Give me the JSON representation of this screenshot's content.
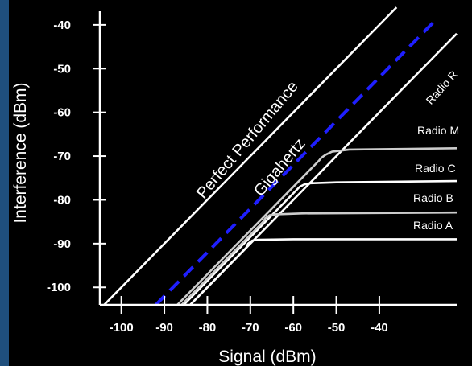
{
  "chart_data": {
    "type": "line",
    "xlabel": "Signal (dBm)",
    "ylabel": "Interference (dBm)",
    "xlim": [
      -105,
      -22
    ],
    "ylim": [
      -104,
      -38
    ],
    "x_ticks": [
      -100,
      -90,
      -80,
      -70,
      -60,
      -50,
      -40
    ],
    "y_ticks": [
      -40,
      -50,
      -60,
      -70,
      -80,
      -90,
      -100
    ],
    "colors": {
      "background": "#000000",
      "stripe": "#1f4f7d",
      "white": "#ffffff",
      "gigahertz": "#1f1fff",
      "radio": "#cccccc"
    },
    "series": [
      {
        "name": "Perfect Performance",
        "style": "solid",
        "color": "#ffffff",
        "label_angle": -50,
        "points": [
          [
            -104,
            -104
          ],
          [
            -36,
            -36
          ]
        ]
      },
      {
        "name": "Gigahertz",
        "style": "dashed",
        "color": "#1f1fff",
        "label_angle": -50,
        "points": [
          [
            -92,
            -104
          ],
          [
            -27,
            -39
          ]
        ]
      },
      {
        "name": "Radio R",
        "style": "solid",
        "color": "#ffffff",
        "label_angle": -48,
        "points": [
          [
            -84,
            -104
          ],
          [
            -22,
            -42
          ]
        ]
      },
      {
        "name": "Radio M",
        "style": "solid",
        "color": "#cccccc",
        "label_angle": 0,
        "points": [
          [
            -87,
            -104
          ],
          [
            -54,
            -71
          ],
          [
            -53.5,
            -70.4
          ],
          [
            -52.5,
            -69.7
          ],
          [
            -51,
            -69
          ],
          [
            -47,
            -68.5
          ],
          [
            -22,
            -68.2
          ]
        ]
      },
      {
        "name": "Radio C",
        "style": "solid",
        "color": "#ffffff",
        "label_angle": 0,
        "points": [
          [
            -85.5,
            -104
          ],
          [
            -59,
            -77.5
          ],
          [
            -58.5,
            -77
          ],
          [
            -57.5,
            -76.5
          ],
          [
            -56,
            -76.2
          ],
          [
            -50,
            -76
          ],
          [
            -22,
            -75.7
          ]
        ]
      },
      {
        "name": "Radio B",
        "style": "solid",
        "color": "#cccccc",
        "label_angle": 0,
        "points": [
          [
            -86,
            -104
          ],
          [
            -67,
            -85
          ],
          [
            -66.5,
            -84.2
          ],
          [
            -65.5,
            -83.5
          ],
          [
            -64,
            -83.3
          ],
          [
            -58,
            -83.1
          ],
          [
            -22,
            -82.9
          ]
        ]
      },
      {
        "name": "Radio A",
        "style": "solid",
        "color": "#ffffff",
        "label_angle": 0,
        "points": [
          [
            -84,
            -104
          ],
          [
            -71,
            -91
          ],
          [
            -70.5,
            -90
          ],
          [
            -69.5,
            -89.3
          ],
          [
            -68,
            -89.1
          ],
          [
            -60,
            -89
          ],
          [
            -22,
            -89
          ]
        ]
      }
    ]
  }
}
